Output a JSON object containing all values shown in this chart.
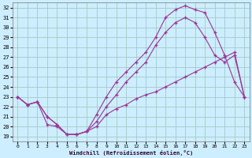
{
  "xlabel": "Windchill (Refroidissement éolien,°C)",
  "bg_color": "#cceeff",
  "grid_color": "#aacccc",
  "line_color": "#993399",
  "xlim": [
    -0.5,
    23.5
  ],
  "ylim": [
    18.5,
    32.5
  ],
  "xticks": [
    0,
    1,
    2,
    3,
    4,
    5,
    6,
    7,
    8,
    9,
    10,
    11,
    12,
    13,
    14,
    15,
    16,
    17,
    18,
    19,
    20,
    21,
    22,
    23
  ],
  "yticks": [
    19,
    20,
    21,
    22,
    23,
    24,
    25,
    26,
    27,
    28,
    29,
    30,
    31,
    32
  ],
  "line1_x": [
    0,
    1,
    2,
    3,
    4,
    5,
    6,
    7,
    8,
    9,
    10,
    11,
    12,
    13,
    14,
    15,
    16,
    17,
    18,
    19,
    20,
    21,
    22,
    23
  ],
  "line1_y": [
    23.0,
    22.2,
    22.5,
    21.0,
    20.2,
    19.2,
    19.2,
    19.5,
    20.0,
    21.2,
    21.8,
    22.2,
    22.8,
    23.2,
    23.5,
    24.0,
    24.5,
    25.0,
    25.5,
    26.0,
    26.5,
    27.0,
    27.5,
    23.0
  ],
  "line2_x": [
    0,
    1,
    2,
    3,
    4,
    5,
    6,
    7,
    8,
    9,
    10,
    11,
    12,
    13,
    14,
    15,
    16,
    17,
    18,
    19,
    20,
    21,
    22,
    23
  ],
  "line2_y": [
    23.0,
    22.2,
    22.5,
    21.0,
    20.2,
    19.2,
    19.2,
    19.5,
    21.2,
    23.0,
    24.5,
    25.5,
    26.5,
    27.5,
    29.0,
    31.0,
    31.8,
    32.2,
    31.8,
    31.5,
    29.5,
    27.2,
    24.5,
    23.0
  ],
  "line3_x": [
    0,
    1,
    2,
    3,
    4,
    5,
    6,
    7,
    8,
    9,
    10,
    11,
    12,
    13,
    14,
    15,
    16,
    17,
    18,
    19,
    20,
    21,
    22,
    23
  ],
  "line3_y": [
    23.0,
    22.2,
    22.5,
    20.2,
    20.0,
    19.2,
    19.2,
    19.5,
    20.5,
    22.0,
    23.2,
    24.5,
    25.5,
    26.5,
    28.2,
    29.5,
    30.5,
    31.0,
    30.5,
    29.0,
    27.2,
    26.5,
    27.2,
    23.0
  ]
}
